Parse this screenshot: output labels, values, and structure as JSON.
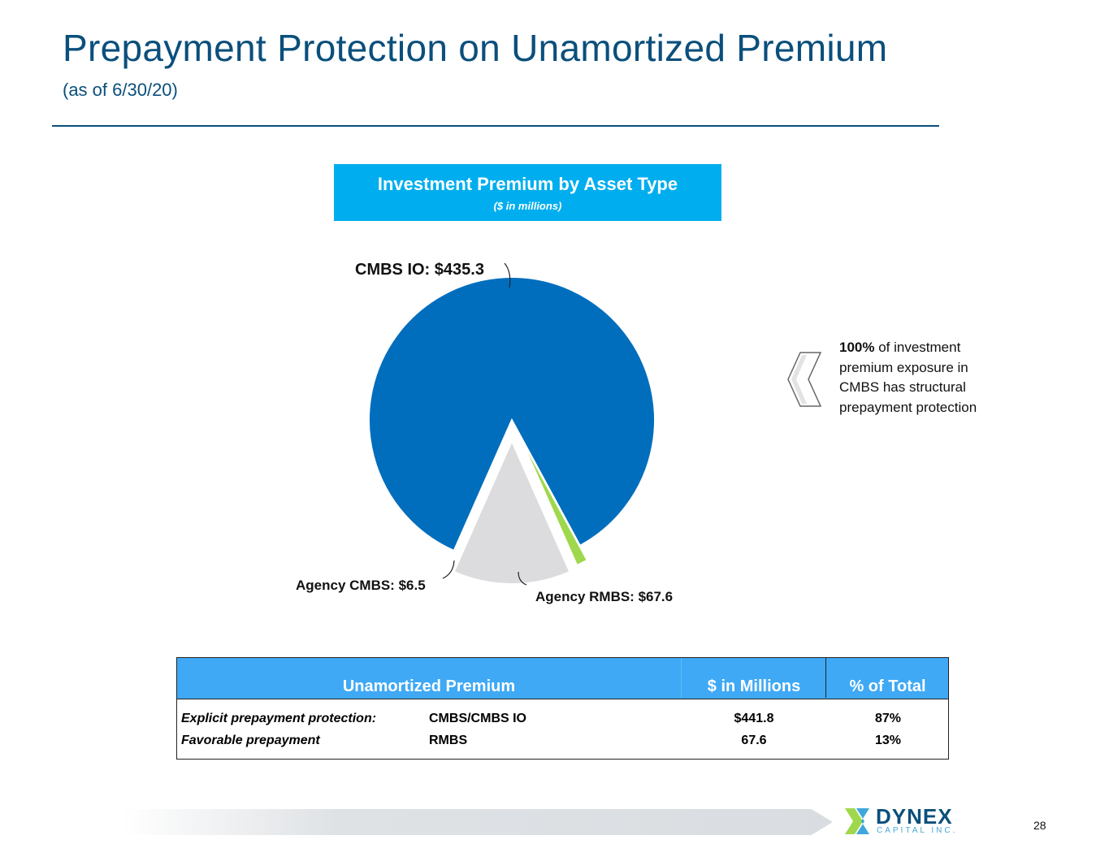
{
  "header": {
    "title": "Prepayment Protection on Unamortized Premium",
    "subtitle": "(as of 6/30/20)"
  },
  "chart_header": {
    "title": "Investment Premium by Asset Type",
    "units": "($ in millions)"
  },
  "chart_data": {
    "type": "pie",
    "title": "Investment Premium by Asset Type",
    "subtitle": "($ in millions)",
    "slices": [
      {
        "label": "CMBS IO",
        "value": 435.3,
        "display": "CMBS IO: $435.3",
        "color": "#006ebd"
      },
      {
        "label": "Agency RMBS",
        "value": 67.6,
        "display": "Agency RMBS: $67.6",
        "color": "#dcdcde"
      },
      {
        "label": "Agency CMBS",
        "value": 6.5,
        "display": "Agency CMBS: $6.5",
        "color": "#9fd84c"
      }
    ]
  },
  "callout": {
    "bold": "100%",
    "text": " of investment premium exposure in CMBS has structural prepayment protection"
  },
  "table": {
    "headers": [
      "Unamortized Premium",
      "$ in Millions",
      "% of Total"
    ],
    "rows": [
      {
        "category": "Explicit prepayment protection:",
        "type": "CMBS/CMBS IO",
        "amount": "$441.8",
        "pct": "87%"
      },
      {
        "category": "Favorable prepayment",
        "type": "RMBS",
        "amount": "67.6",
        "pct": "13%"
      }
    ]
  },
  "footer": {
    "logo_name": "DYNEX",
    "logo_sub": "CAPITAL INC.",
    "page_number": "28"
  },
  "colors": {
    "title": "#0b4f7c",
    "chart_header_bg": "#00aeef",
    "table_header_bg": "#3fa9f5"
  }
}
